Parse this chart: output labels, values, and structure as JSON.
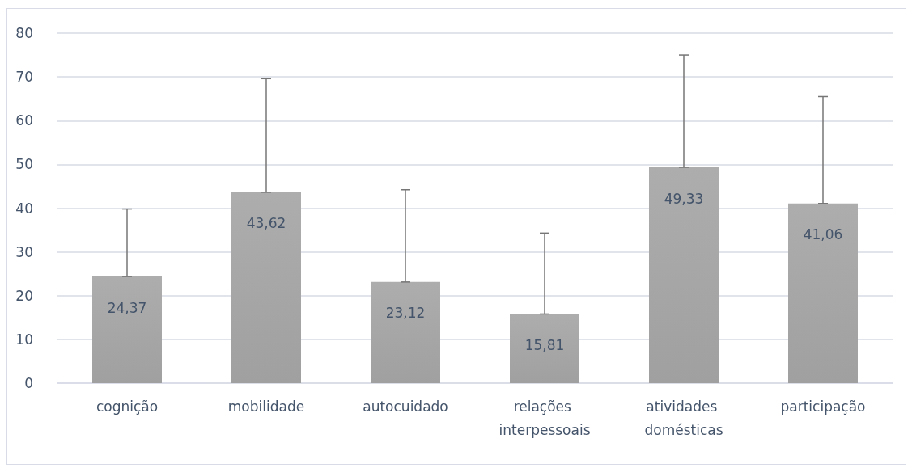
{
  "chart_data": {
    "type": "bar",
    "categories": [
      "cognição",
      "mobilidade",
      "autocuidado",
      "relações interpessoais",
      "atividades domésticas",
      "participação"
    ],
    "values": [
      24.37,
      43.62,
      23.12,
      15.81,
      49.33,
      41.06
    ],
    "value_labels": [
      "24,37",
      "43,62",
      "23,12",
      "15,81",
      "49,33",
      "41,06"
    ],
    "errors": [
      [
        24.37,
        39.8
      ],
      [
        43.62,
        69.6
      ],
      [
        23.12,
        44.2
      ],
      [
        15.81,
        34.3
      ],
      [
        49.33,
        75.0
      ],
      [
        41.06,
        65.5
      ]
    ],
    "color": "#a0a0a0",
    "ylim": [
      0,
      80
    ],
    "yticks": [
      0,
      10,
      20,
      30,
      40,
      50,
      60,
      70,
      80
    ],
    "grid": "y"
  }
}
